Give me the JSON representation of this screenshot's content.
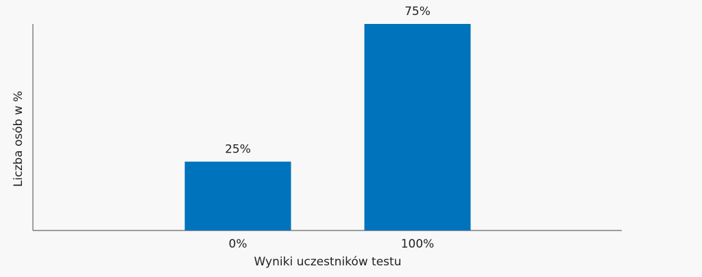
{
  "chart_data": {
    "type": "bar",
    "categories": [
      "0%",
      "100%"
    ],
    "values": [
      25,
      75
    ],
    "value_labels": [
      "25%",
      "75%"
    ],
    "color": "#0073bd",
    "ylim": [
      0,
      75
    ],
    "x_label": "Wyniki uczestników testu",
    "y_label": "Liczba osób w %"
  }
}
